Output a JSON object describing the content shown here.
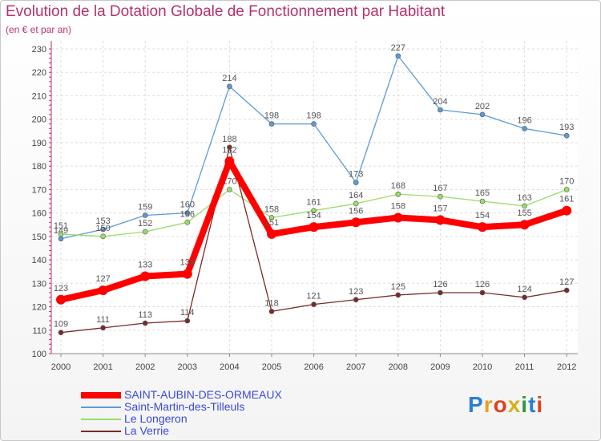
{
  "header": {
    "title": "Evolution de la Dotation Globale de Fonctionnement par Habitant",
    "subtitle": "(en € et par an)"
  },
  "chart_data": {
    "type": "line",
    "x": [
      "2000",
      "2001",
      "2002",
      "2003",
      "2004",
      "2005",
      "2006",
      "2007",
      "2008",
      "2009",
      "2010",
      "2011",
      "2012"
    ],
    "ylim": [
      100,
      230
    ],
    "yticks": [
      100,
      110,
      120,
      130,
      140,
      150,
      160,
      170,
      180,
      190,
      200,
      210,
      220,
      230
    ],
    "grid": true,
    "legend_position": "bottom-left",
    "series": [
      {
        "name": "SAINT-AUBIN-DES-ORMEAUX",
        "color": "#ff0000",
        "values": [
          123,
          127,
          133,
          134,
          182,
          151,
          154,
          156,
          158,
          157,
          154,
          155,
          161
        ]
      },
      {
        "name": "Saint-Martin-des-Tilleuls",
        "color": "#5b9bd5",
        "values": [
          149,
          153,
          159,
          160,
          214,
          198,
          198,
          173,
          227,
          204,
          202,
          196,
          193
        ]
      },
      {
        "name": "Le Longeron",
        "color": "#99dd66",
        "values": [
          151,
          150,
          152,
          156,
          170,
          158,
          161,
          164,
          168,
          167,
          165,
          163,
          170
        ]
      },
      {
        "name": "La Verrie",
        "color": "#7a2a2a",
        "values": [
          109,
          111,
          113,
          114,
          188,
          118,
          121,
          123,
          125,
          126,
          126,
          124,
          127
        ]
      }
    ]
  },
  "logo": {
    "text": "Proxiti"
  }
}
